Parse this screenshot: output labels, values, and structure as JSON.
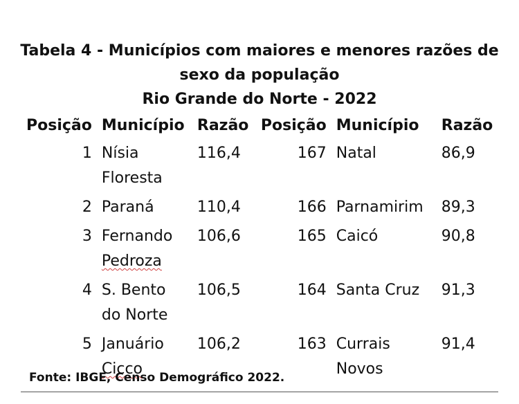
{
  "document": {
    "title_line1": "Tabela 4 - Municípios com maiores e menores razões de",
    "title_line2": "sexo da população",
    "title_line3": "Rio Grande do Norte - 2022",
    "headers": [
      "Posição",
      "Município",
      "Razão",
      "Posição",
      "Município",
      "Razão"
    ],
    "rows": [
      {
        "pos_a": "1",
        "mun_a_1": "Nísia",
        "mun_a_2": "Floresta",
        "raz_a": "116,4",
        "pos_b": "167",
        "mun_b_1": "Natal",
        "mun_b_2": "",
        "raz_b": "86,9"
      },
      {
        "pos_a": "2",
        "mun_a_1": "Paraná",
        "mun_a_2": "",
        "raz_a": "110,4",
        "pos_b": "166",
        "mun_b_1": "Parnamirim",
        "mun_b_2": "",
        "raz_b": "89,3"
      },
      {
        "pos_a": "3",
        "mun_a_1": "Fernando",
        "mun_a_2": "Pedroza",
        "raz_a": "106,6",
        "pos_b": "165",
        "mun_b_1": "Caicó",
        "mun_b_2": "",
        "raz_b": "90,8"
      },
      {
        "pos_a": "4",
        "mun_a_1": "S. Bento",
        "mun_a_2": "do Norte",
        "raz_a": "106,5",
        "pos_b": "164",
        "mun_b_1": "Santa Cruz",
        "mun_b_2": "",
        "raz_b": "91,3"
      },
      {
        "pos_a": "5",
        "mun_a_1": "Januário",
        "mun_a_2": "Cicco",
        "raz_a": "106,2",
        "pos_b": "163",
        "mun_b_1": "Currais",
        "mun_b_2": "Novos",
        "raz_b": "91,4"
      }
    ],
    "source": "Fonte: IBGE, Censo Demográfico 2022."
  }
}
